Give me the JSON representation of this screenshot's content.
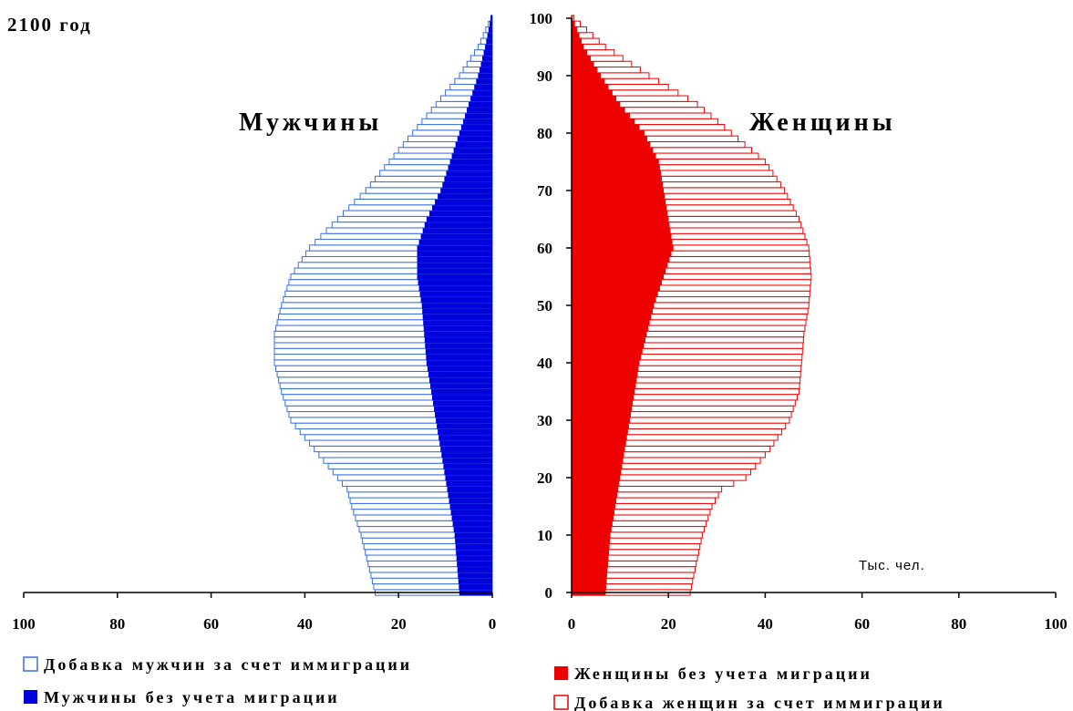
{
  "chart_data": {
    "type": "bar",
    "subtype": "population-pyramid",
    "title": "2100 год",
    "unit_label": "Тыс. чел.",
    "y_ticks": [
      0,
      10,
      20,
      30,
      40,
      50,
      60,
      70,
      80,
      90,
      100
    ],
    "age_range": [
      0,
      100
    ],
    "left_panel": {
      "label": "Мужчины",
      "x_ticks": [
        100,
        80,
        60,
        40,
        20,
        0
      ],
      "xlim": [
        0,
        100
      ],
      "series": [
        {
          "name": "Мужчины  без учета миграции",
          "color": "#0000dd",
          "fill": "solid",
          "points": [
            [
              0,
              7
            ],
            [
              10,
              8
            ],
            [
              20,
              10
            ],
            [
              30,
              12
            ],
            [
              40,
              14
            ],
            [
              50,
              15
            ],
            [
              55,
              16
            ],
            [
              60,
              16
            ],
            [
              65,
              14
            ],
            [
              70,
              11
            ],
            [
              75,
              9
            ],
            [
              80,
              7
            ],
            [
              85,
              5
            ],
            [
              90,
              3
            ],
            [
              95,
              1.5
            ],
            [
              100,
              0.3
            ]
          ]
        },
        {
          "name": "Добавка мужчин за счет иммиграции",
          "color": "#3a6fe0",
          "fill": "outline",
          "total_shown": true,
          "points": [
            [
              0,
              25
            ],
            [
              10,
              28
            ],
            [
              15,
              30
            ],
            [
              18,
              31
            ],
            [
              20,
              33
            ],
            [
              25,
              38
            ],
            [
              30,
              43
            ],
            [
              35,
              45
            ],
            [
              40,
              46.5
            ],
            [
              45,
              46.5
            ],
            [
              50,
              45
            ],
            [
              55,
              43
            ],
            [
              60,
              39
            ],
            [
              65,
              33
            ],
            [
              70,
              27
            ],
            [
              75,
              22
            ],
            [
              80,
              17
            ],
            [
              85,
              12
            ],
            [
              90,
              7
            ],
            [
              95,
              3
            ],
            [
              100,
              0.3
            ]
          ]
        }
      ]
    },
    "right_panel": {
      "label": "Женщины",
      "x_ticks": [
        0,
        20,
        40,
        60,
        80,
        100
      ],
      "xlim": [
        0,
        100
      ],
      "series": [
        {
          "name": "Женщины без учета миграции",
          "color": "#ee0000",
          "fill": "solid",
          "points": [
            [
              0,
              7
            ],
            [
              10,
              8
            ],
            [
              20,
              10
            ],
            [
              30,
              12
            ],
            [
              40,
              14
            ],
            [
              50,
              17
            ],
            [
              55,
              19
            ],
            [
              60,
              21
            ],
            [
              65,
              20
            ],
            [
              70,
              19
            ],
            [
              75,
              18
            ],
            [
              80,
              15
            ],
            [
              85,
              10
            ],
            [
              90,
              6
            ],
            [
              95,
              2.5
            ],
            [
              100,
              0.2
            ]
          ]
        },
        {
          "name": "Добавка женщин за счет иммиграции",
          "color": "#ee0000",
          "fill": "outline",
          "total_shown": true,
          "points": [
            [
              0,
              24.5
            ],
            [
              10,
              27
            ],
            [
              15,
              29
            ],
            [
              18,
              31
            ],
            [
              20,
              36
            ],
            [
              25,
              41
            ],
            [
              30,
              45
            ],
            [
              35,
              47
            ],
            [
              40,
              47.5
            ],
            [
              45,
              48
            ],
            [
              50,
              49
            ],
            [
              55,
              49.5
            ],
            [
              60,
              49
            ],
            [
              65,
              47
            ],
            [
              70,
              44
            ],
            [
              75,
              40
            ],
            [
              80,
              33
            ],
            [
              85,
              26
            ],
            [
              90,
              16
            ],
            [
              95,
              7
            ],
            [
              100,
              0.5
            ]
          ]
        }
      ]
    },
    "legend_left": [
      {
        "label": "Добавка мужчин за счет иммиграции",
        "color": "#3a6fe0",
        "fill": "outline"
      },
      {
        "label": "Мужчины  без учета миграции",
        "color": "#0000dd",
        "fill": "solid"
      }
    ],
    "legend_right": [
      {
        "label": "Женщины без учета миграции",
        "color": "#ee0000",
        "fill": "solid"
      },
      {
        "label": "Добавка женщин за счет иммиграции",
        "color": "#ee0000",
        "fill": "outline"
      }
    ]
  }
}
